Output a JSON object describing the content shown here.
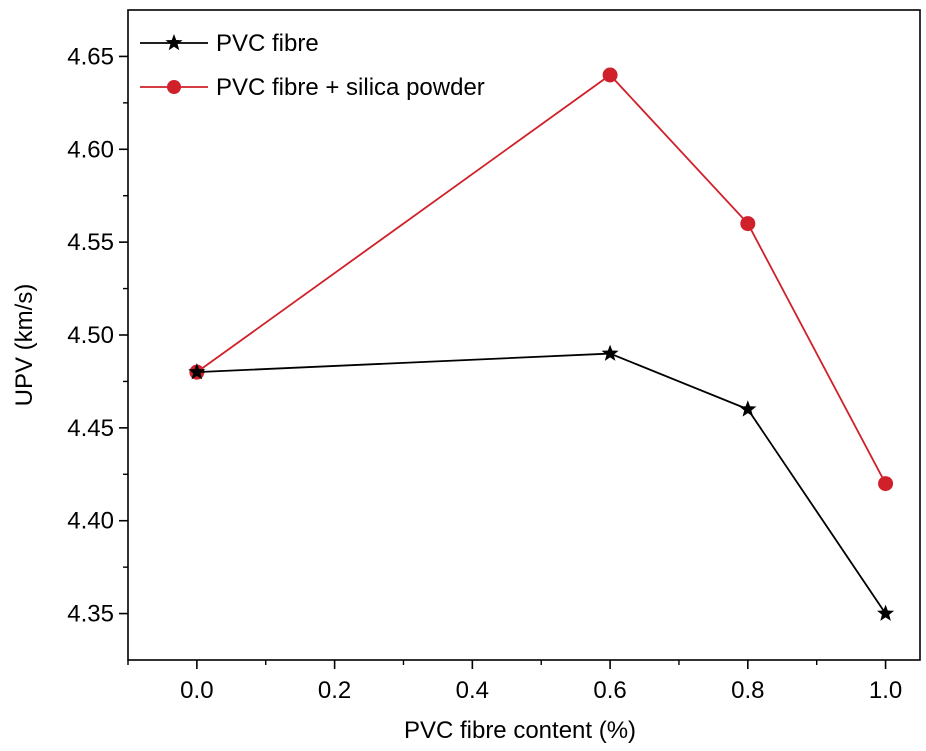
{
  "chart_data": {
    "type": "line",
    "title": "",
    "xlabel": "PVC fibre content (%)",
    "ylabel": "UPV (km/s)",
    "xlim": [
      -0.1,
      1.05
    ],
    "ylim": [
      4.325,
      4.675
    ],
    "xticks": [
      "0.0",
      "0.2",
      "0.4",
      "0.6",
      "0.8",
      "1.0"
    ],
    "yticks": [
      "4.35",
      "4.40",
      "4.45",
      "4.50",
      "4.55",
      "4.60",
      "4.65"
    ],
    "grid": false,
    "legend_position": "top-left",
    "series": [
      {
        "name": "PVC fibre",
        "color": "#000000",
        "marker": "star",
        "x": [
          0.0,
          0.6,
          0.8,
          1.0
        ],
        "y": [
          4.48,
          4.49,
          4.46,
          4.35
        ]
      },
      {
        "name": "PVC fibre + silica powder",
        "color": "#d0202a",
        "marker": "circle",
        "x": [
          0.0,
          0.6,
          0.8,
          1.0
        ],
        "y": [
          4.48,
          4.64,
          4.56,
          4.42
        ]
      }
    ]
  }
}
